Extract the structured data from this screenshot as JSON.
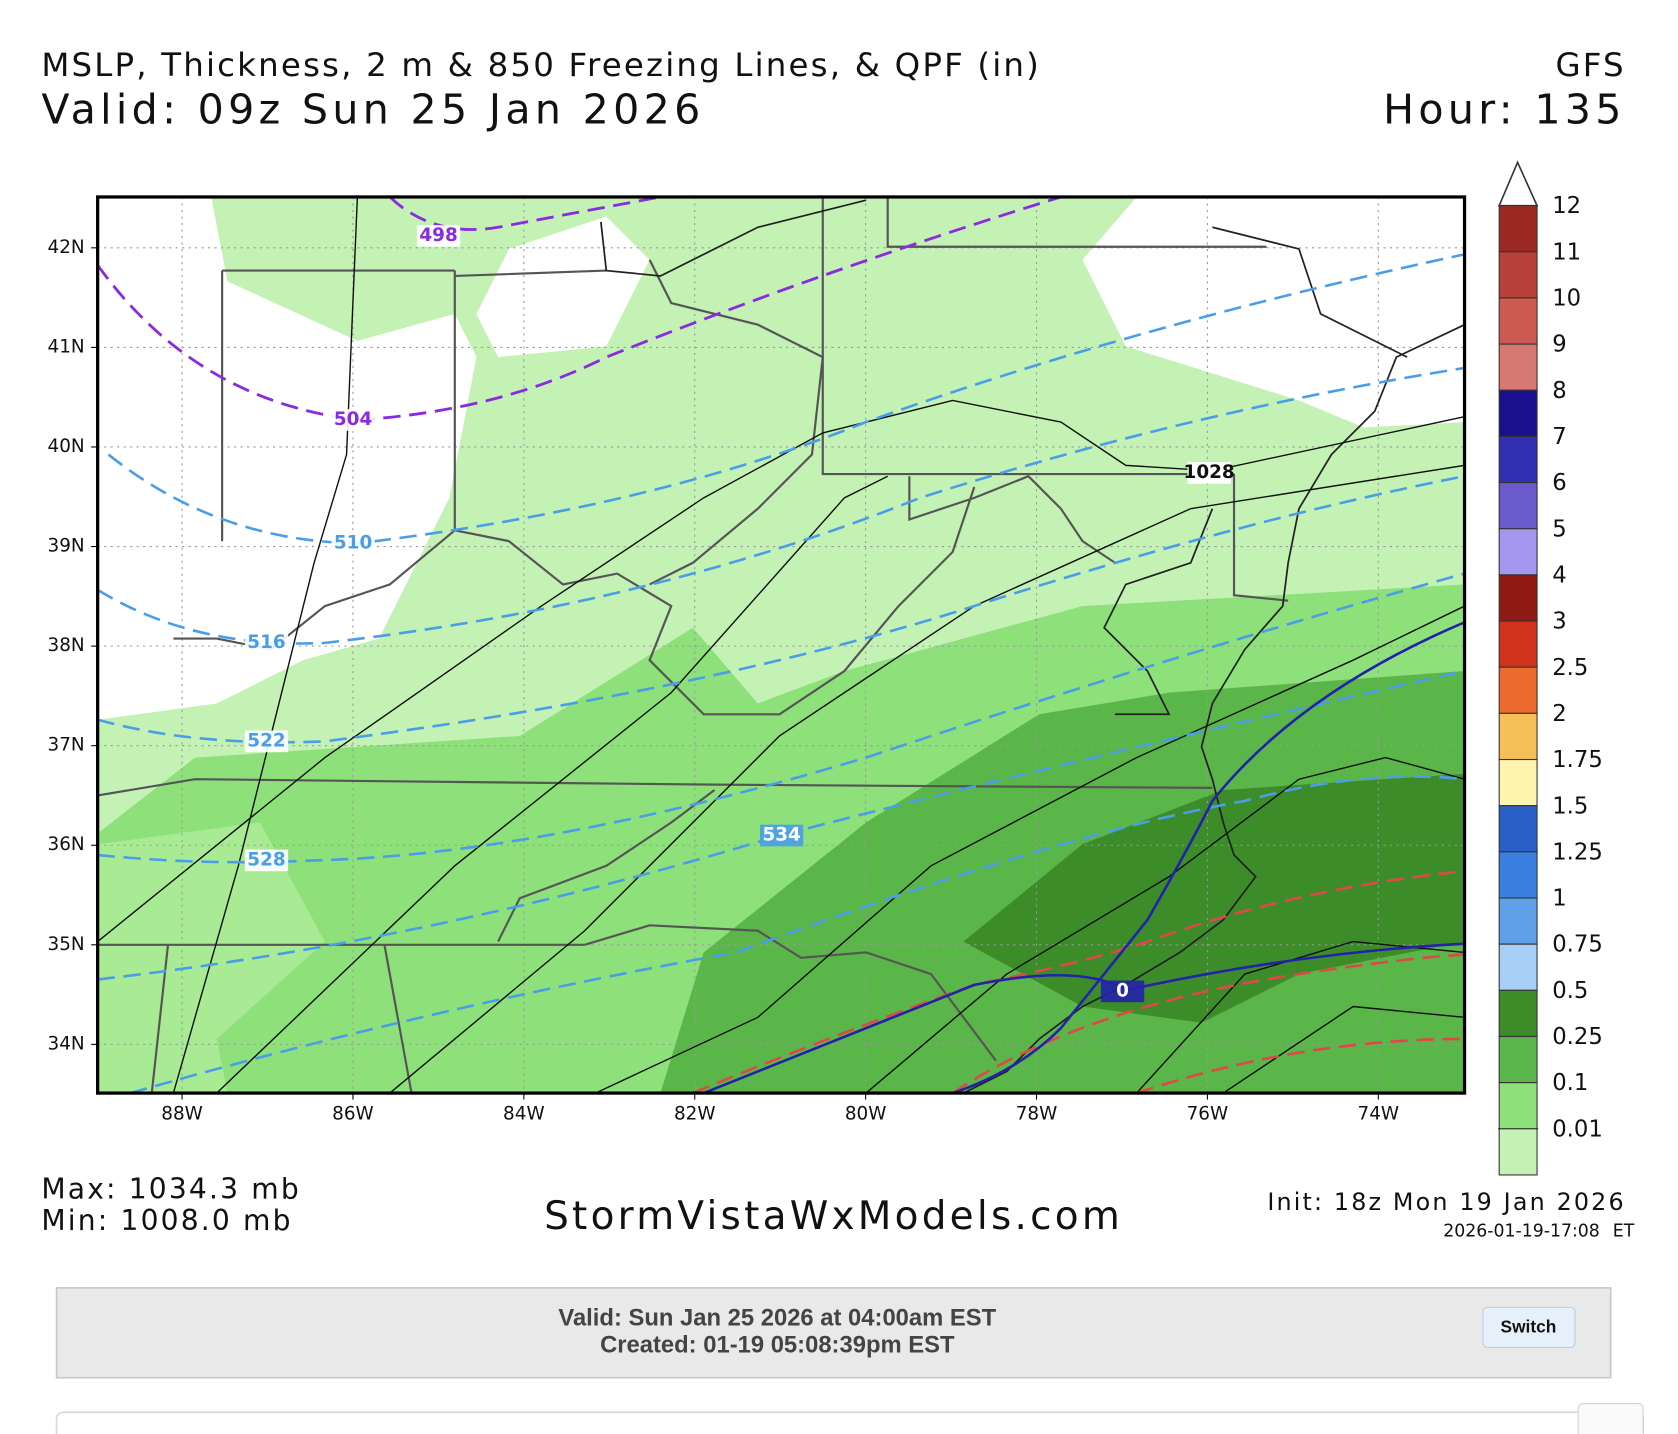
{
  "header": {
    "title": "MSLP, Thickness, 2 m & 850 Freezing Lines, & QPF (in)",
    "model": "GFS",
    "valid": "Valid: 09z Sun 25 Jan 2026",
    "hour": "Hour: 135"
  },
  "map": {
    "lat_labels": [
      "42N",
      "41N",
      "40N",
      "39N",
      "38N",
      "37N",
      "36N",
      "35N",
      "34N"
    ],
    "lon_labels": [
      "88W",
      "86W",
      "84W",
      "82W",
      "80W",
      "78W",
      "76W",
      "74W"
    ],
    "contour_labels": [
      "498",
      "504",
      "510",
      "516",
      "522",
      "528",
      "534",
      "1028",
      "0"
    ]
  },
  "legend": {
    "labels": [
      "12",
      "11",
      "10",
      "9",
      "8",
      "7",
      "6",
      "5",
      "4",
      "3",
      "2.5",
      "2",
      "1.75",
      "1.5",
      "1.25",
      "1",
      "0.75",
      "0.5",
      "0.25",
      "0.1",
      "0.01"
    ],
    "colors": [
      "#9b2a24",
      "#b8403a",
      "#cc5a50",
      "#d77873",
      "#1a0f8f",
      "#3030b0",
      "#6a5acd",
      "#a596f0",
      "#8f1a14",
      "#d0321c",
      "#ec6a2b",
      "#f5c057",
      "#fdf4b0",
      "#2a5fc8",
      "#3a7ee0",
      "#60a0ea",
      "#a8d0f6",
      "#3c8c2a",
      "#5ab648",
      "#8ee07a",
      "#c4f2b4"
    ]
  },
  "footer": {
    "max": "Max: 1034.3 mb",
    "min": "Min: 1008.0 mb",
    "site": "StormVistaWxModels.com",
    "init": "Init: 18z Mon 19 Jan 2026",
    "stamp": "2026-01-19-17:08",
    "zone": "ET"
  },
  "info": {
    "valid": "Valid: Sun Jan 25 2026 at 04:00am EST",
    "created": "Created: 01-19 05:08:39pm EST",
    "button": "Switch"
  }
}
